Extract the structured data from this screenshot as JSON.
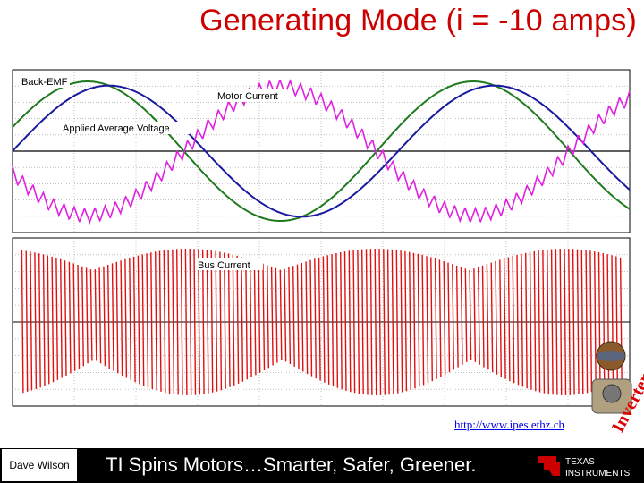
{
  "slide": {
    "title": "Generating Mode (i = -10 amps)",
    "presenter": "Dave Wilson",
    "tagline": "TI Spins Motors…Smarter, Safer, Greener.",
    "url": "http://www.ipes.ethz.ch",
    "logo_text": {
      "line1": "TEXAS",
      "line2": "INSTRUMENTS"
    },
    "sticker_text": "Inverter"
  },
  "colors": {
    "title": "#cc0000",
    "back_emf": "#1f7a1f",
    "applied_voltage": "#1a1aa0",
    "motor_current": "#e020e0",
    "bus_current": "#e01010",
    "footer": "#000000"
  },
  "chart_data": [
    {
      "type": "line",
      "grid": true,
      "annotations": [
        "Back-EMF",
        "Motor Current",
        "Applied Average Voltage"
      ],
      "series": [
        {
          "key": "back_emf",
          "label": "Back-EMF",
          "amplitude": 1.0,
          "phase_deg": 0,
          "color": "#1f7a1f"
        },
        {
          "key": "applied_voltage",
          "label": "Applied Average Voltage",
          "amplitude": 0.94,
          "phase_deg": -20,
          "color": "#1a1aa0"
        },
        {
          "key": "motor_current",
          "label": "Motor Current",
          "amplitude": 0.92,
          "phase_deg": 180,
          "ripple": 0.1,
          "ripple_cycles": 60,
          "color": "#e020e0"
        }
      ],
      "cycles": 1.6
    },
    {
      "type": "line",
      "grid": true,
      "annotations": [
        "Bus Current"
      ],
      "series": [
        {
          "key": "bus_current",
          "label": "Bus Current",
          "pulses": 140,
          "color": "#e01010"
        }
      ]
    }
  ]
}
